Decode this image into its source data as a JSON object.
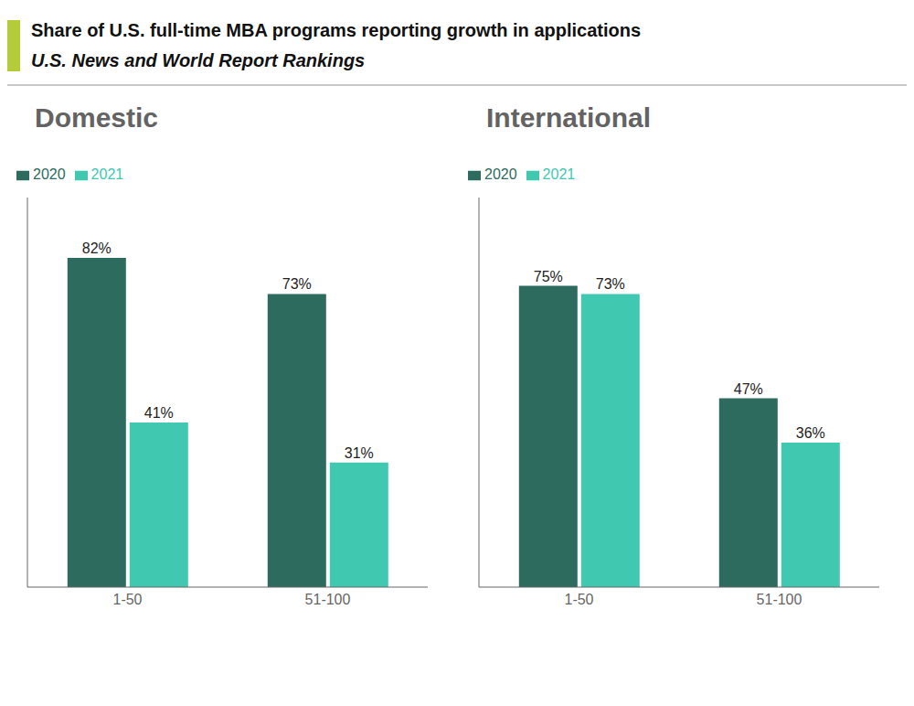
{
  "title": "Share of U.S. full-time MBA programs reporting growth in applications",
  "subtitle": "U.S. News and World Report Rankings",
  "chart_data": [
    {
      "type": "bar",
      "title": "Domestic",
      "categories": [
        "1-50",
        "51-100"
      ],
      "series": [
        {
          "name": "2020",
          "color": "#2d6b5e",
          "values": [
            82,
            73
          ],
          "value_labels": [
            "82%",
            "73%"
          ]
        },
        {
          "name": "2021",
          "color": "#40c9b0",
          "values": [
            41,
            31
          ],
          "value_labels": [
            "41%",
            "31%"
          ]
        }
      ],
      "ylim": [
        0,
        97
      ],
      "data_labels": true,
      "tick_labels": "x",
      "legend": "upper left",
      "grid": false
    },
    {
      "type": "bar",
      "title": "International",
      "categories": [
        "1-50",
        "51-100"
      ],
      "series": [
        {
          "name": "2020",
          "color": "#2d6b5e",
          "values": [
            75,
            47
          ],
          "value_labels": [
            "75%",
            "47%"
          ]
        },
        {
          "name": "2021",
          "color": "#40c9b0",
          "values": [
            73,
            36
          ],
          "value_labels": [
            "73%",
            "36%"
          ]
        }
      ],
      "ylim": [
        0,
        97
      ],
      "data_labels": true,
      "tick_labels": "x",
      "legend": "upper left",
      "grid": false
    }
  ]
}
